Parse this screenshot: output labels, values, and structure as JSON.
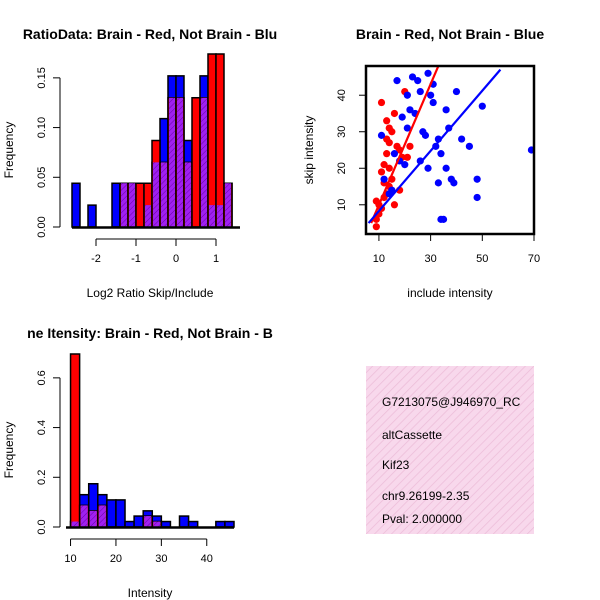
{
  "colors": {
    "red": "#ff0000",
    "blue": "#0000ff",
    "overlap": "#a020f0",
    "panel_bg": "#f8d8ec",
    "pval_text": "#b00000"
  },
  "chart_data": [
    {
      "type": "bar",
      "title": "RatioData: Brain - Red, Not Brain - Blu",
      "xlabel": "Log2 Ratio Skip/Include",
      "ylabel": "Frequency",
      "xlim": [
        -2.6,
        1.6
      ],
      "ylim": [
        0,
        0.175
      ],
      "xticks": [
        "-2",
        "-1",
        "0",
        "1"
      ],
      "xtick_values": [
        -2,
        -1,
        0,
        1
      ],
      "yticks": [
        "0.00",
        "0.05",
        "0.10",
        "0.15"
      ],
      "ytick_values": [
        0,
        0.05,
        0.1,
        0.15
      ],
      "bin_width": 0.2,
      "series": [
        {
          "name": "Not Brain",
          "color": "blue",
          "bins": [
            [
              -2.6,
              0.044
            ],
            [
              -2.2,
              0.022
            ],
            [
              -1.6,
              0.044
            ],
            [
              -1.4,
              0.044
            ],
            [
              -1.2,
              0.044
            ],
            [
              -0.8,
              0.022
            ],
            [
              -0.6,
              0.065
            ],
            [
              -0.4,
              0.109
            ],
            [
              -0.2,
              0.152
            ],
            [
              0,
              0.152
            ],
            [
              0.2,
              0.087
            ],
            [
              0.6,
              0.152
            ],
            [
              0.8,
              0.022
            ],
            [
              1.0,
              0.022
            ],
            [
              1.2,
              0.044
            ]
          ]
        },
        {
          "name": "Brain",
          "color": "red",
          "bins": [
            [
              -1.4,
              0.044
            ],
            [
              -1.2,
              0.044
            ],
            [
              -1.0,
              0.044
            ],
            [
              -0.8,
              0.044
            ],
            [
              -0.6,
              0.087
            ],
            [
              -0.4,
              0.065
            ],
            [
              -0.2,
              0.13
            ],
            [
              0,
              0.13
            ],
            [
              0.2,
              0.065
            ],
            [
              0.4,
              0.13
            ],
            [
              0.6,
              0.13
            ],
            [
              0.8,
              0.174
            ],
            [
              1.0,
              0.174
            ],
            [
              1.2,
              0.044
            ]
          ]
        }
      ]
    },
    {
      "type": "scatter",
      "title": "Brain - Red, Not Brain - Blue",
      "xlabel": "include intensity",
      "ylabel": "skip intensity",
      "xlim": [
        5,
        70
      ],
      "ylim": [
        2,
        48
      ],
      "xticks": [
        "10",
        "30",
        "50",
        "70"
      ],
      "xtick_values": [
        10,
        30,
        50,
        70
      ],
      "yticks": [
        "10",
        "20",
        "30",
        "40"
      ],
      "ytick_values": [
        10,
        20,
        30,
        40
      ],
      "series": [
        {
          "name": "Brain",
          "color": "red",
          "points": [
            [
              9,
              4
            ],
            [
              9,
              6
            ],
            [
              10,
              7.5
            ],
            [
              10,
              10
            ],
            [
              9,
              11
            ],
            [
              11,
              9
            ],
            [
              12,
              12
            ],
            [
              13,
              13
            ],
            [
              14,
              15
            ],
            [
              12,
              16
            ],
            [
              15,
              17
            ],
            [
              16,
              10
            ],
            [
              18,
              14
            ],
            [
              11,
              19
            ],
            [
              12,
              21
            ],
            [
              13,
              24
            ],
            [
              14,
              27
            ],
            [
              15,
              30
            ],
            [
              13,
              28
            ],
            [
              14,
              31
            ],
            [
              17,
              26
            ],
            [
              18,
              25
            ],
            [
              16,
              35
            ],
            [
              20,
              41
            ],
            [
              22,
              26
            ],
            [
              21,
              23
            ],
            [
              19,
              23
            ],
            [
              13,
              33
            ],
            [
              11,
              38
            ],
            [
              14,
              20
            ]
          ],
          "fit": [
            [
              7,
              5
            ],
            [
              33,
              48
            ]
          ]
        },
        {
          "name": "Not Brain",
          "color": "blue",
          "points": [
            [
              11,
              29
            ],
            [
              12,
              17
            ],
            [
              14,
              13
            ],
            [
              15,
              14
            ],
            [
              16,
              24
            ],
            [
              17,
              44
            ],
            [
              18,
              22
            ],
            [
              19,
              34
            ],
            [
              20,
              21
            ],
            [
              21,
              31
            ],
            [
              22,
              36
            ],
            [
              23,
              45
            ],
            [
              24,
              35
            ],
            [
              25,
              44
            ],
            [
              26,
              41
            ],
            [
              27,
              30
            ],
            [
              28,
              29
            ],
            [
              29,
              46
            ],
            [
              30,
              40
            ],
            [
              31,
              43
            ],
            [
              32,
              26
            ],
            [
              33,
              28
            ],
            [
              34,
              24
            ],
            [
              36,
              20
            ],
            [
              38,
              17
            ],
            [
              39,
              16
            ],
            [
              40,
              41
            ],
            [
              42,
              28
            ],
            [
              45,
              26
            ],
            [
              48,
              17
            ],
            [
              48,
              12
            ],
            [
              50,
              37
            ],
            [
              36,
              36
            ],
            [
              37,
              31
            ],
            [
              33,
              16
            ],
            [
              34,
              6
            ],
            [
              35,
              6
            ],
            [
              69,
              25
            ],
            [
              26,
              22
            ],
            [
              21,
              40
            ],
            [
              29,
              20
            ],
            [
              31,
              38
            ]
          ],
          "fit": [
            [
              6,
              5
            ],
            [
              57,
              47
            ]
          ]
        }
      ]
    },
    {
      "type": "bar",
      "title": "ne Itensity: Brain - Red, Not Brain - B",
      "xlabel": "Intensity",
      "ylabel": "Frequency",
      "xlim": [
        9,
        46
      ],
      "ylim": [
        0,
        0.7
      ],
      "xticks": [
        "10",
        "20",
        "30",
        "40"
      ],
      "xtick_values": [
        10,
        20,
        30,
        40
      ],
      "yticks": [
        "0.0",
        "0.2",
        "0.4",
        "0.6"
      ],
      "ytick_values": [
        0,
        0.2,
        0.4,
        0.6
      ],
      "bin_width": 2,
      "series": [
        {
          "name": "Not Brain",
          "color": "blue",
          "bins": [
            [
              10,
              0.022
            ],
            [
              12,
              0.13
            ],
            [
              14,
              0.174
            ],
            [
              16,
              0.13
            ],
            [
              18,
              0.109
            ],
            [
              20,
              0.109
            ],
            [
              22,
              0.022
            ],
            [
              24,
              0.044
            ],
            [
              26,
              0.065
            ],
            [
              28,
              0.044
            ],
            [
              30,
              0.022
            ],
            [
              34,
              0.044
            ],
            [
              36,
              0.022
            ],
            [
              42,
              0.022
            ],
            [
              44,
              0.022
            ]
          ]
        },
        {
          "name": "Brain",
          "color": "red",
          "bins": [
            [
              10,
              0.696
            ],
            [
              12,
              0.087
            ],
            [
              14,
              0.065
            ],
            [
              16,
              0.087
            ],
            [
              26,
              0.044
            ],
            [
              28,
              0.022
            ]
          ]
        }
      ]
    }
  ],
  "info_panel": {
    "lines": [
      "G7213075@J946970_RC",
      "altCassette",
      "Kif23",
      "chr9.26199-2.35"
    ],
    "pval": "Pval: 2.000000"
  }
}
